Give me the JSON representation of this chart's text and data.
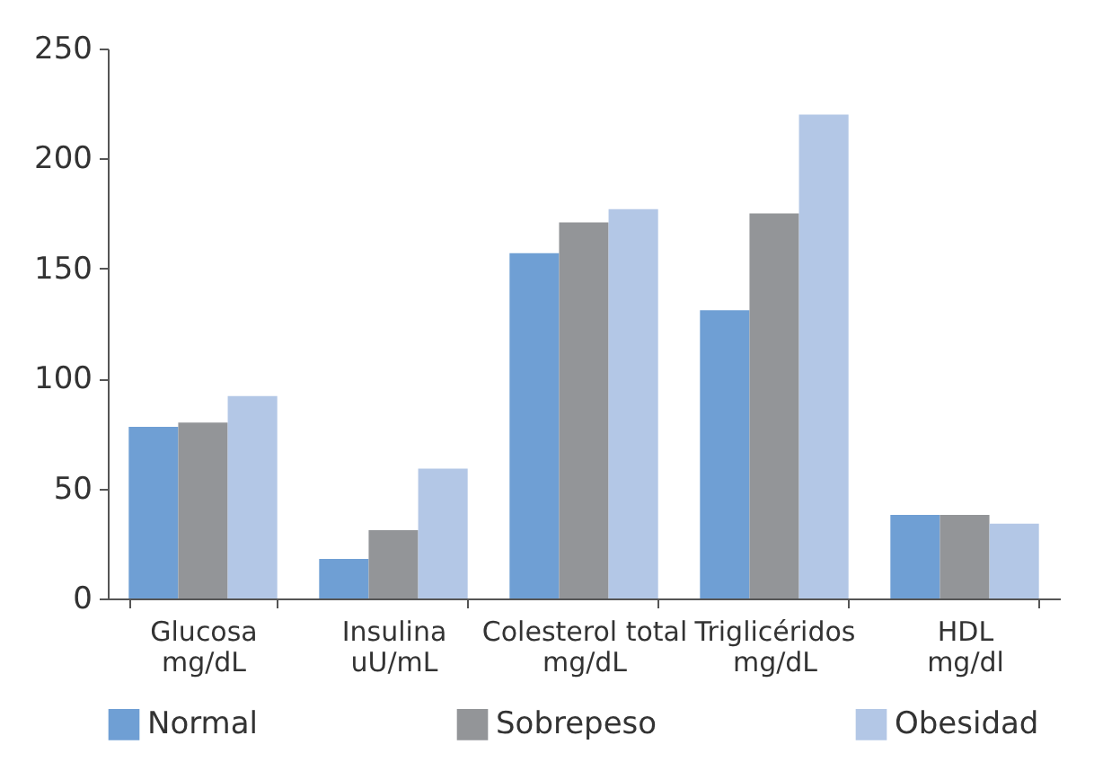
{
  "chart_data": {
    "type": "bar",
    "categories": [
      "Glucosa mg/dL",
      "Insulina uU/mL",
      "Colesterol total mg/dL",
      "Triglicéridos mg/dL",
      "HDL mg/dl"
    ],
    "series": [
      {
        "name": "Normal",
        "color": "#6f9fd4",
        "values": [
          78,
          18,
          157,
          131,
          38
        ]
      },
      {
        "name": "Sobrepeso",
        "color": "#939598",
        "values": [
          80,
          31,
          171,
          175,
          38
        ]
      },
      {
        "name": "Obesidad",
        "color": "#b3c7e6",
        "values": [
          92,
          59,
          177,
          220,
          34
        ]
      }
    ],
    "ylim": [
      0,
      250
    ],
    "yticks": [
      0,
      50,
      100,
      150,
      200,
      250
    ],
    "grid": false,
    "legend": "bottom"
  }
}
